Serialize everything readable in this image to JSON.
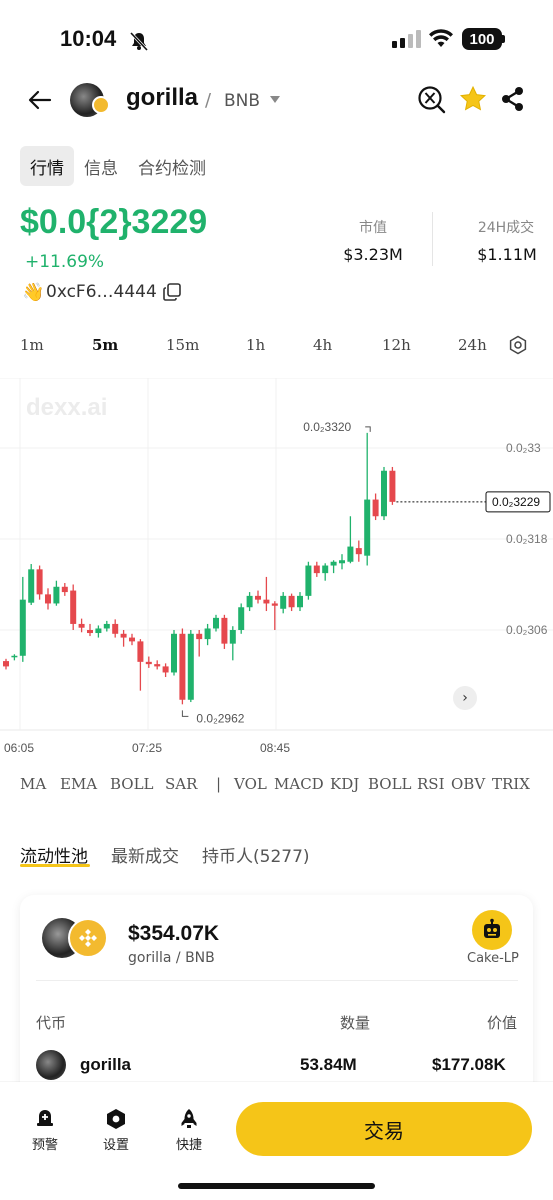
{
  "status_bar": {
    "time": "10:04",
    "battery": "100"
  },
  "header": {
    "token_name": "gorilla",
    "separator": "/",
    "pair": "BNB"
  },
  "top_tabs": [
    {
      "label": "行情",
      "active": true
    },
    {
      "label": "信息",
      "active": false
    },
    {
      "label": "合约检测",
      "active": false
    }
  ],
  "price": {
    "value": "$0.0{2}3229",
    "change": "+11.69%",
    "address": "0xcF6…4444"
  },
  "stats": {
    "market_cap_label": "市值",
    "market_cap_value": "$3.23M",
    "volume_label": "24H成交",
    "volume_value": "$1.11M"
  },
  "intervals": [
    {
      "label": "1m",
      "active": false
    },
    {
      "label": "5m",
      "active": true
    },
    {
      "label": "15m",
      "active": false
    },
    {
      "label": "1h",
      "active": false
    },
    {
      "label": "4h",
      "active": false
    },
    {
      "label": "12h",
      "active": false
    },
    {
      "label": "24h",
      "active": false
    }
  ],
  "chart": {
    "watermark": "dexx.ai",
    "high_label": "0.0₂3320",
    "low_label": "0.0₂2962",
    "current_label": "0.0₂3229",
    "y_ticks": [
      "0.0₂33",
      "0.0₂318",
      "0.0₂306"
    ],
    "x_ticks": [
      "06:05",
      "07:25",
      "08:45"
    ]
  },
  "chart_data": {
    "type": "candlestick",
    "up_color": "#20b26c",
    "down_color": "#e5484d",
    "y_axis_ticks": [
      0.0033,
      0.00318,
      0.00306
    ],
    "x_axis_ticks": [
      "06:05",
      "07:25",
      "08:45"
    ],
    "high": 0.00332,
    "low": 0.002962,
    "current": 0.003229,
    "candles": [
      {
        "o": 0.003019,
        "h": 0.003022,
        "l": 0.003008,
        "c": 0.003012
      },
      {
        "o": 0.003024,
        "h": 0.003028,
        "l": 0.00302,
        "c": 0.003026
      },
      {
        "o": 0.003026,
        "h": 0.00313,
        "l": 0.003018,
        "c": 0.0031
      },
      {
        "o": 0.003096,
        "h": 0.003147,
        "l": 0.003093,
        "c": 0.00314
      },
      {
        "o": 0.00314,
        "h": 0.003145,
        "l": 0.0031,
        "c": 0.003107
      },
      {
        "o": 0.003107,
        "h": 0.003115,
        "l": 0.003087,
        "c": 0.003095
      },
      {
        "o": 0.003095,
        "h": 0.003125,
        "l": 0.003092,
        "c": 0.003117
      },
      {
        "o": 0.003117,
        "h": 0.003122,
        "l": 0.003105,
        "c": 0.00311
      },
      {
        "o": 0.003112,
        "h": 0.00312,
        "l": 0.00306,
        "c": 0.003068
      },
      {
        "o": 0.003068,
        "h": 0.003075,
        "l": 0.003057,
        "c": 0.003063
      },
      {
        "o": 0.00306,
        "h": 0.003068,
        "l": 0.003052,
        "c": 0.003056
      },
      {
        "o": 0.003056,
        "h": 0.003066,
        "l": 0.00305,
        "c": 0.003062
      },
      {
        "o": 0.003062,
        "h": 0.003072,
        "l": 0.003058,
        "c": 0.003068
      },
      {
        "o": 0.003068,
        "h": 0.003074,
        "l": 0.00305,
        "c": 0.003055
      },
      {
        "o": 0.003055,
        "h": 0.00306,
        "l": 0.003038,
        "c": 0.00305
      },
      {
        "o": 0.00305,
        "h": 0.003055,
        "l": 0.00304,
        "c": 0.003045
      },
      {
        "o": 0.003045,
        "h": 0.003048,
        "l": 0.00298,
        "c": 0.003018
      },
      {
        "o": 0.003018,
        "h": 0.003025,
        "l": 0.00301,
        "c": 0.003015
      },
      {
        "o": 0.003015,
        "h": 0.00302,
        "l": 0.003008,
        "c": 0.003012
      },
      {
        "o": 0.003012,
        "h": 0.003016,
        "l": 0.002998,
        "c": 0.003004
      },
      {
        "o": 0.003004,
        "h": 0.00306,
        "l": 0.003,
        "c": 0.003055
      },
      {
        "o": 0.003055,
        "h": 0.003062,
        "l": 0.002962,
        "c": 0.002968
      },
      {
        "o": 0.002968,
        "h": 0.00306,
        "l": 0.002965,
        "c": 0.003055
      },
      {
        "o": 0.003055,
        "h": 0.00306,
        "l": 0.003025,
        "c": 0.003048
      },
      {
        "o": 0.003048,
        "h": 0.003068,
        "l": 0.00304,
        "c": 0.003062
      },
      {
        "o": 0.003062,
        "h": 0.00308,
        "l": 0.003058,
        "c": 0.003076
      },
      {
        "o": 0.003076,
        "h": 0.00308,
        "l": 0.003035,
        "c": 0.003042
      },
      {
        "o": 0.003042,
        "h": 0.003065,
        "l": 0.00302,
        "c": 0.00306
      },
      {
        "o": 0.00306,
        "h": 0.003095,
        "l": 0.003055,
        "c": 0.00309
      },
      {
        "o": 0.00309,
        "h": 0.00311,
        "l": 0.003085,
        "c": 0.003105
      },
      {
        "o": 0.003105,
        "h": 0.003112,
        "l": 0.003095,
        "c": 0.0031
      },
      {
        "o": 0.0031,
        "h": 0.00313,
        "l": 0.003085,
        "c": 0.003095
      },
      {
        "o": 0.003095,
        "h": 0.003098,
        "l": 0.00306,
        "c": 0.003092
      },
      {
        "o": 0.003088,
        "h": 0.00311,
        "l": 0.003082,
        "c": 0.003105
      },
      {
        "o": 0.003105,
        "h": 0.003108,
        "l": 0.003085,
        "c": 0.00309
      },
      {
        "o": 0.00309,
        "h": 0.00311,
        "l": 0.003085,
        "c": 0.003105
      },
      {
        "o": 0.003105,
        "h": 0.00315,
        "l": 0.0031,
        "c": 0.003145
      },
      {
        "o": 0.003145,
        "h": 0.00315,
        "l": 0.00313,
        "c": 0.003135
      },
      {
        "o": 0.003135,
        "h": 0.003148,
        "l": 0.003125,
        "c": 0.003145
      },
      {
        "o": 0.003145,
        "h": 0.003152,
        "l": 0.003135,
        "c": 0.00315
      },
      {
        "o": 0.003148,
        "h": 0.00316,
        "l": 0.00314,
        "c": 0.003152
      },
      {
        "o": 0.00315,
        "h": 0.00321,
        "l": 0.003148,
        "c": 0.00317
      },
      {
        "o": 0.003168,
        "h": 0.003178,
        "l": 0.00315,
        "c": 0.00316
      },
      {
        "o": 0.003158,
        "h": 0.00332,
        "l": 0.003145,
        "c": 0.003232
      },
      {
        "o": 0.003232,
        "h": 0.00324,
        "l": 0.003205,
        "c": 0.00321
      },
      {
        "o": 0.00321,
        "h": 0.003275,
        "l": 0.003205,
        "c": 0.00327
      },
      {
        "o": 0.00327,
        "h": 0.003275,
        "l": 0.003225,
        "c": 0.003229
      }
    ]
  },
  "indicators": [
    "MA",
    "EMA",
    "BOLL",
    "SAR",
    "|",
    "VOL",
    "MACD",
    "KDJ",
    "BOLL",
    "RSI",
    "OBV",
    "TRIX"
  ],
  "section_tabs": [
    {
      "label": "流动性池",
      "active": true
    },
    {
      "label": "最新成交",
      "active": false
    },
    {
      "label": "持币人(5277)",
      "active": false
    }
  ],
  "pool": {
    "value": "$354.07K",
    "pair": "gorilla / BNB",
    "dex_label": "Cake-LP",
    "col_token": "代币",
    "col_qty": "数量",
    "col_value": "价值",
    "rows": [
      {
        "name": "gorilla",
        "qty": "53.84M",
        "value": "$177.08K"
      }
    ]
  },
  "bottom_nav": [
    {
      "label": "预警",
      "icon": "alert-icon"
    },
    {
      "label": "设置",
      "icon": "settings-icon"
    },
    {
      "label": "快捷",
      "icon": "rocket-icon"
    }
  ],
  "trade_button": "交易"
}
